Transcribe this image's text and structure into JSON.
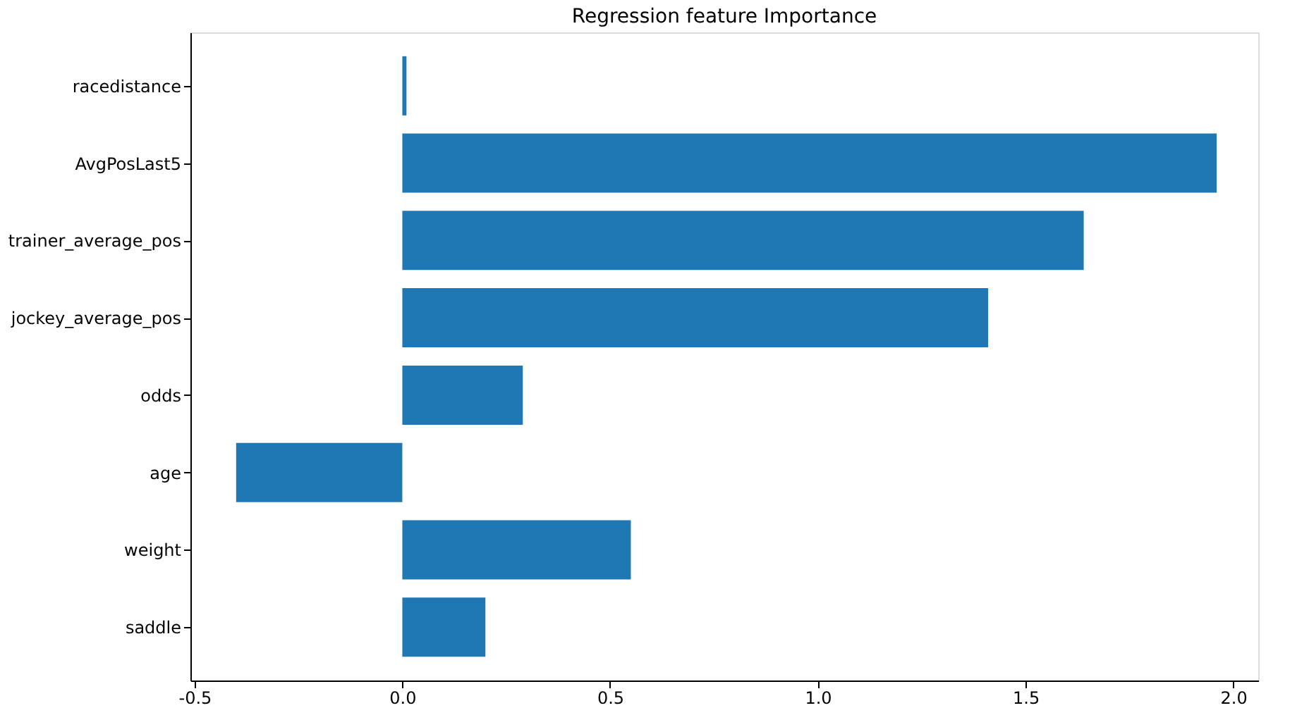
{
  "chart_data": {
    "type": "bar",
    "orientation": "horizontal",
    "title": "Regression feature Importance",
    "categories": [
      "racedistance",
      "AvgPosLast5",
      "trainer_average_pos",
      "jockey_average_pos",
      "odds",
      "age",
      "weight",
      "saddle"
    ],
    "values": [
      0.01,
      1.96,
      1.64,
      1.41,
      0.29,
      -0.4,
      0.55,
      0.2
    ],
    "color": "#1f77b4",
    "xlim": [
      -0.51,
      2.06
    ],
    "xticks": [
      -0.5,
      {
        "value": 0,
        "label": "0.0"
      },
      0.5,
      {
        "value": 1,
        "label": "1.0"
      },
      1.5,
      {
        "value": 2,
        "label": "2.0"
      }
    ],
    "grid": false
  }
}
